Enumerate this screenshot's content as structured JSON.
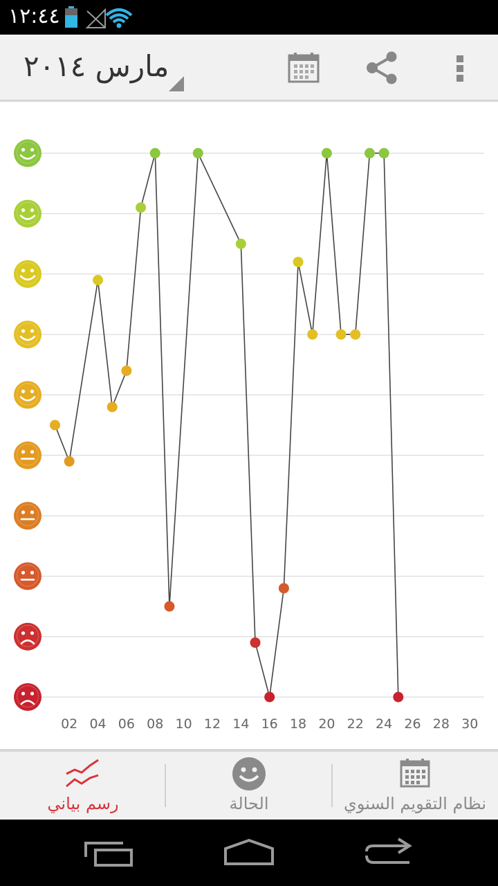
{
  "status_bar": {
    "time": "١٢:٤٤"
  },
  "action_bar": {
    "title": "مارس ٢٠١٤",
    "icons": [
      "calendar-icon",
      "share-icon",
      "overflow-menu-icon"
    ]
  },
  "chart_data": {
    "type": "line",
    "title": "",
    "xlabel": "",
    "ylabel": "",
    "x_ticks": [
      "02",
      "04",
      "06",
      "08",
      "10",
      "12",
      "14",
      "16",
      "18",
      "20",
      "22",
      "24",
      "26",
      "28",
      "30"
    ],
    "x_range": [
      1,
      30
    ],
    "y_range": [
      1,
      10
    ],
    "y_levels": [
      {
        "level": 10,
        "face": "smile",
        "color": "#8dc63f"
      },
      {
        "level": 9,
        "face": "smile",
        "color": "#a9cf38"
      },
      {
        "level": 8,
        "face": "smile",
        "color": "#d9c921"
      },
      {
        "level": 7,
        "face": "smile",
        "color": "#e3bf24"
      },
      {
        "level": 6,
        "face": "smile",
        "color": "#e6ad22"
      },
      {
        "level": 5,
        "face": "neutral",
        "color": "#e39a20"
      },
      {
        "level": 4,
        "face": "neutral",
        "color": "#dc7d24"
      },
      {
        "level": 3,
        "face": "neutral",
        "color": "#d65a2c"
      },
      {
        "level": 2,
        "face": "sad",
        "color": "#cc3030"
      },
      {
        "level": 1,
        "face": "sad",
        "color": "#c8222e"
      }
    ],
    "series": [
      {
        "points": [
          {
            "x": 1,
            "y": 5.5
          },
          {
            "x": 2,
            "y": 4.9
          },
          {
            "x": 4,
            "y": 7.9
          },
          {
            "x": 5,
            "y": 5.8
          },
          {
            "x": 6,
            "y": 6.4
          },
          {
            "x": 7,
            "y": 9.1
          },
          {
            "x": 8,
            "y": 10
          },
          {
            "x": 9,
            "y": 2.5
          },
          {
            "x": 11,
            "y": 10
          },
          {
            "x": 14,
            "y": 8.5
          },
          {
            "x": 15,
            "y": 1.9
          },
          {
            "x": 16,
            "y": 1
          },
          {
            "x": 17,
            "y": 2.8
          },
          {
            "x": 18,
            "y": 8.2
          },
          {
            "x": 19,
            "y": 7
          },
          {
            "x": 20,
            "y": 10
          },
          {
            "x": 21,
            "y": 7
          },
          {
            "x": 22,
            "y": 7
          },
          {
            "x": 23,
            "y": 10
          },
          {
            "x": 24,
            "y": 10
          },
          {
            "x": 25,
            "y": 1
          }
        ]
      }
    ],
    "grid": true
  },
  "bottom_tabs": [
    {
      "label": "رسم بياني",
      "icon": "chart-icon",
      "active": true,
      "color": "#d9343b"
    },
    {
      "label": "الحالة",
      "icon": "smiley-icon",
      "active": false,
      "color": "#8a8a8a"
    },
    {
      "label": "نظام التقويم السنوي",
      "icon": "calendar-grid-icon",
      "active": false,
      "color": "#8a8a8a"
    }
  ],
  "nav_bar": {
    "icons": [
      "recent-apps-icon",
      "home-icon",
      "back-icon"
    ]
  }
}
